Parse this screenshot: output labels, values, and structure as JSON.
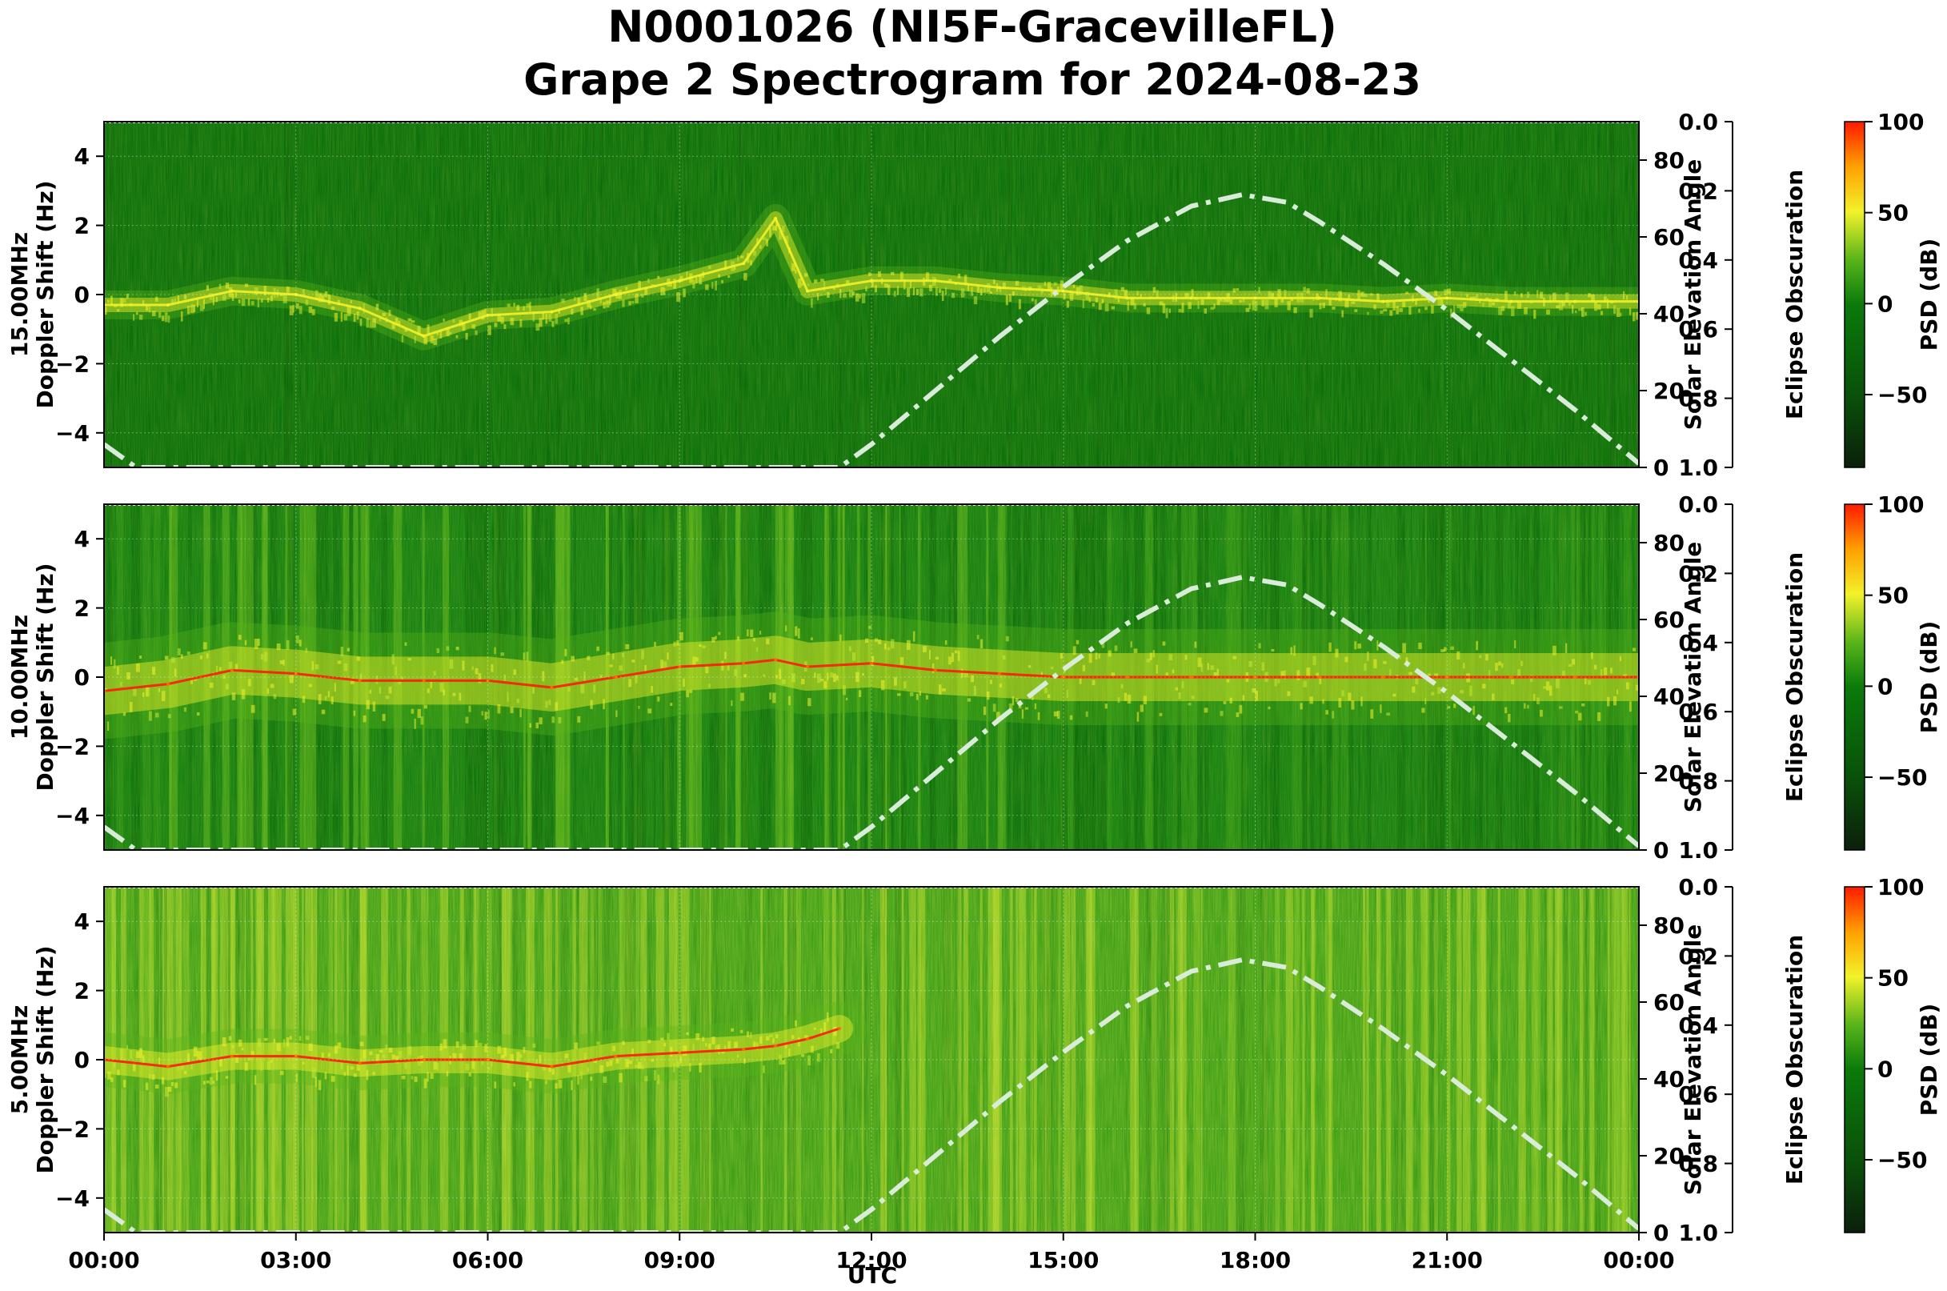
{
  "title_line1": "N0001026 (NI5F-GracevilleFL)",
  "title_line2": "Grape 2 Spectrogram for 2024-08-23",
  "xlabel": "UTC",
  "x_tick_labels": [
    "00:00",
    "03:00",
    "06:00",
    "09:00",
    "12:00",
    "15:00",
    "18:00",
    "21:00",
    "00:00"
  ],
  "right_axis_label": "Solar Elevation Angle",
  "eclipse_axis_label": "Eclipse Obscuration",
  "colorbar_label": "PSD (dB)",
  "colors": {
    "low": "#0b1f0b",
    "mid_low": "#0a6a0a",
    "mid": "#58b41a",
    "high_mid": "#f2f22a",
    "high": "#ff1a00",
    "solar_curve": "#d9ecd9"
  },
  "chart_data": [
    {
      "type": "heatmap",
      "band": "15.00MHz",
      "ylabel_line1": "15.00MHz",
      "ylabel_line2": "Doppler Shift (Hz)",
      "ylim": [
        -5,
        5
      ],
      "y_ticks": [
        4,
        2,
        0,
        -2,
        -4
      ],
      "right_ylim": [
        0,
        90
      ],
      "right_ticks": [
        80,
        60,
        40,
        20,
        0
      ],
      "eclipse_ylim": [
        1.0,
        0.0
      ],
      "eclipse_ticks": [
        "0.0",
        "0.2",
        "0.4",
        "0.6",
        "0.8",
        "1.0"
      ],
      "colorbar_ticks": [
        100,
        50,
        0,
        -50
      ],
      "colorbar_range": [
        -90,
        100
      ],
      "doppler_trace_hz": {
        "x_hours": [
          0,
          1,
          2,
          3,
          4,
          5,
          6,
          7,
          8,
          9,
          10,
          10.5,
          11,
          12,
          13,
          14,
          15,
          16,
          17,
          18,
          19,
          20,
          21,
          22,
          23,
          24
        ],
        "y": [
          -0.3,
          -0.3,
          0.1,
          0,
          -0.4,
          -1.2,
          -0.6,
          -0.5,
          0,
          0.4,
          0.9,
          2.2,
          0.1,
          0.4,
          0.4,
          0.2,
          0.1,
          -0.1,
          -0.1,
          -0.1,
          -0.1,
          -0.2,
          -0.1,
          -0.2,
          -0.2,
          -0.2
        ]
      }
    },
    {
      "type": "heatmap",
      "band": "10.00MHz",
      "ylabel_line1": "10.00MHz",
      "ylabel_line2": "Doppler Shift (Hz)",
      "ylim": [
        -5,
        5
      ],
      "y_ticks": [
        4,
        2,
        0,
        -2,
        -4
      ],
      "right_ylim": [
        0,
        90
      ],
      "right_ticks": [
        80,
        60,
        40,
        20,
        0
      ],
      "eclipse_ylim": [
        1.0,
        0.0
      ],
      "eclipse_ticks": [
        "0.0",
        "0.2",
        "0.4",
        "0.6",
        "0.8",
        "1.0"
      ],
      "colorbar_ticks": [
        100,
        50,
        0,
        -50
      ],
      "colorbar_range": [
        -90,
        100
      ],
      "doppler_trace_hz": {
        "x_hours": [
          0,
          1,
          2,
          3,
          4,
          5,
          6,
          7,
          8,
          9,
          10,
          10.5,
          11,
          12,
          13,
          14,
          15,
          16,
          17,
          18,
          19,
          20,
          21,
          22,
          23,
          24
        ],
        "y": [
          -0.4,
          -0.2,
          0.2,
          0.1,
          -0.1,
          -0.1,
          -0.1,
          -0.3,
          0,
          0.3,
          0.4,
          0.5,
          0.3,
          0.4,
          0.2,
          0.1,
          0,
          0,
          0,
          0,
          0,
          0,
          0,
          0,
          0,
          0
        ]
      }
    },
    {
      "type": "heatmap",
      "band": "5.00MHz",
      "ylabel_line1": "5.00MHz",
      "ylabel_line2": "Doppler Shift (Hz)",
      "ylim": [
        -5,
        5
      ],
      "y_ticks": [
        4,
        2,
        0,
        -2,
        -4
      ],
      "right_ylim": [
        0,
        90
      ],
      "right_ticks": [
        80,
        60,
        40,
        20,
        0
      ],
      "eclipse_ylim": [
        1.0,
        0.0
      ],
      "eclipse_ticks": [
        "0.0",
        "0.2",
        "0.4",
        "0.6",
        "0.8",
        "1.0"
      ],
      "colorbar_ticks": [
        100,
        50,
        0,
        -50
      ],
      "colorbar_range": [
        -90,
        100
      ],
      "doppler_trace_hz": {
        "x_hours": [
          0,
          1,
          2,
          3,
          4,
          5,
          6,
          7,
          8,
          9,
          10,
          10.5,
          11,
          11.5
        ],
        "y": [
          0,
          -0.2,
          0.1,
          0.1,
          -0.1,
          0,
          0,
          -0.2,
          0.1,
          0.2,
          0.3,
          0.4,
          0.6,
          0.9
        ]
      }
    }
  ],
  "solar_elevation_deg": {
    "x_hours": [
      0,
      0.5,
      11.5,
      12,
      13,
      14,
      15,
      16,
      17,
      17.8,
      18.5,
      19,
      20,
      21,
      22,
      23,
      24
    ],
    "y": [
      6,
      0,
      0,
      6,
      20,
      34,
      47,
      59,
      68,
      71,
      69,
      64,
      53,
      41,
      28,
      15,
      1
    ]
  }
}
